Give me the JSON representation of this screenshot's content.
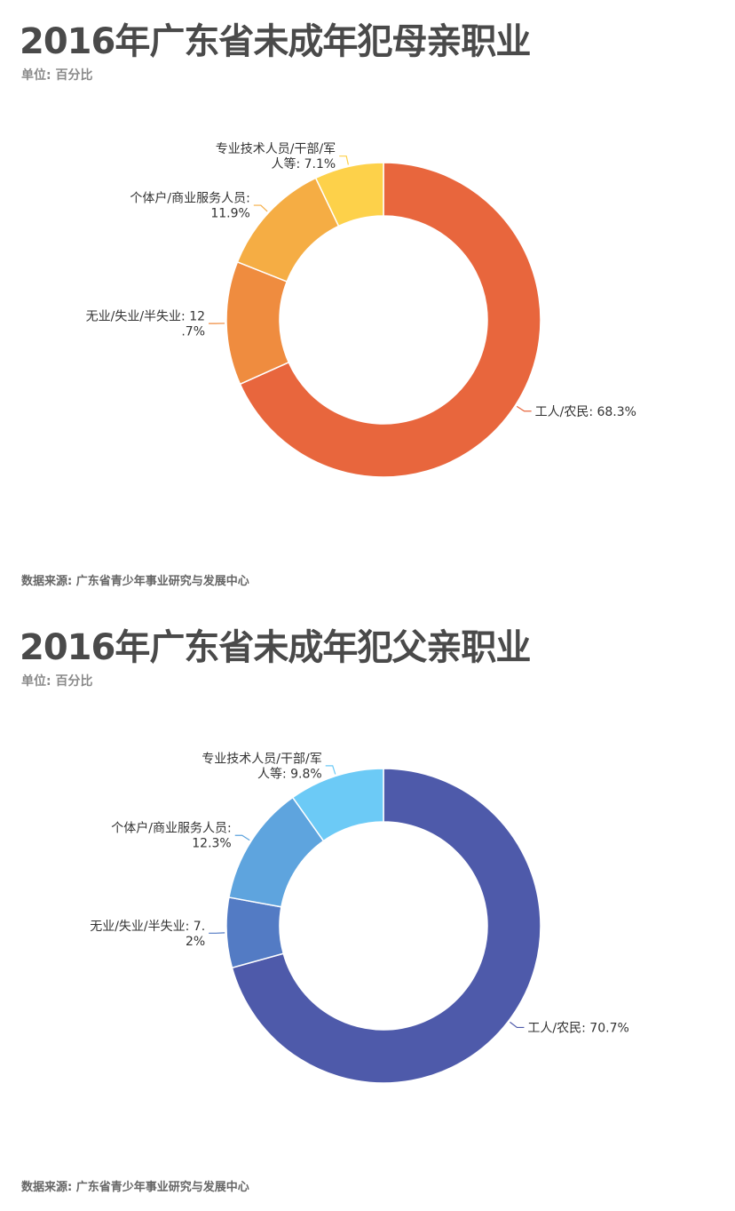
{
  "colors": {
    "mother": [
      "#e8663d",
      "#ef8c3f",
      "#f5ad44",
      "#fdd14a"
    ],
    "father": [
      "#4e5aaa",
      "#537bc4",
      "#5ea4de",
      "#6ccaf6"
    ]
  },
  "chart_data": [
    {
      "type": "pie",
      "donut": true,
      "title": "2016年广东省未成年犯母亲职业",
      "subtitle": "单位: 百分比",
      "source": "数据来源: 广东省青少年事业研究与发展中心",
      "slices": [
        {
          "name": "工人/农民",
          "value": 68.3,
          "label_lines": [
            "工人/农民: 68.3%"
          ]
        },
        {
          "name": "无业/失业/半失业",
          "value": 12.7,
          "label_lines": [
            "无业/失业/半失业: 12",
            ".7%"
          ]
        },
        {
          "name": "个体户/商业服务人员",
          "value": 11.9,
          "label_lines": [
            "个体户/商业服务人员:",
            "11.9%"
          ]
        },
        {
          "name": "专业技术人员/干部/军人等",
          "value": 7.1,
          "label_lines": [
            "专业技术人员/干部/军",
            "人等: 7.1%"
          ]
        }
      ]
    },
    {
      "type": "pie",
      "donut": true,
      "title": "2016年广东省未成年犯父亲职业",
      "subtitle": "单位: 百分比",
      "source": "数据来源: 广东省青少年事业研究与发展中心",
      "slices": [
        {
          "name": "工人/农民",
          "value": 70.7,
          "label_lines": [
            "工人/农民: 70.7%"
          ]
        },
        {
          "name": "无业/失业/半失业",
          "value": 7.2,
          "label_lines": [
            "无业/失业/半失业: 7.",
            "2%"
          ]
        },
        {
          "name": "个体户/商业服务人员",
          "value": 12.3,
          "label_lines": [
            "个体户/商业服务人员:",
            "12.3%"
          ]
        },
        {
          "name": "专业技术人员/干部/军人等",
          "value": 9.8,
          "label_lines": [
            "专业技术人员/干部/军",
            "人等: 9.8%"
          ]
        }
      ]
    }
  ]
}
